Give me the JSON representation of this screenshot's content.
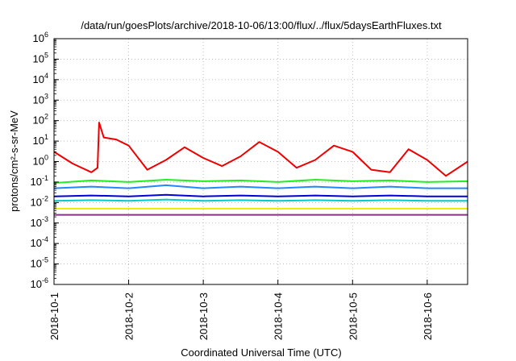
{
  "chart_data": {
    "type": "line",
    "title": "/data/run/goesPlots/archive/2018-10-06/13:00/flux/../flux/5daysEarthFluxes.txt",
    "xlabel": "Coordinated Universal Time (UTC)",
    "ylabel": "protons/cm²-s-sr-MeV",
    "yscale": "log",
    "ylim": [
      1e-06,
      1000000.0
    ],
    "xlim": [
      "2018-10-01",
      "2018-10-06 13:00"
    ],
    "grid": true,
    "legend": "none",
    "x_ticks": [
      "2018-10-1",
      "2018-10-2",
      "2018-10-3",
      "2018-10-4",
      "2018-10-5",
      "2018-10-6"
    ],
    "y_ticks": [
      {
        "base": "10",
        "exp": "6"
      },
      {
        "base": "10",
        "exp": "5"
      },
      {
        "base": "10",
        "exp": "4"
      },
      {
        "base": "10",
        "exp": "3"
      },
      {
        "base": "10",
        "exp": "2"
      },
      {
        "base": "10",
        "exp": "1"
      },
      {
        "base": "10",
        "exp": "0"
      },
      {
        "base": "10",
        "exp": "-1"
      },
      {
        "base": "10",
        "exp": "-2"
      },
      {
        "base": "10",
        "exp": "-3"
      },
      {
        "base": "10",
        "exp": "-4"
      },
      {
        "base": "10",
        "exp": "-5"
      },
      {
        "base": "10",
        "exp": "-6"
      }
    ],
    "series": [
      {
        "color": "#ee0000",
        "x": [
          "2018-10-01 00:00",
          "2018-10-01 06:00",
          "2018-10-01 12:00",
          "2018-10-01 14:00",
          "2018-10-01 14:30",
          "2018-10-01 16:00",
          "2018-10-01 20:00",
          "2018-10-02 00:00",
          "2018-10-02 06:00",
          "2018-10-02 12:00",
          "2018-10-02 18:00",
          "2018-10-03 00:00",
          "2018-10-03 06:00",
          "2018-10-03 12:00",
          "2018-10-03 18:00",
          "2018-10-04 00:00",
          "2018-10-04 06:00",
          "2018-10-04 12:00",
          "2018-10-04 18:00",
          "2018-10-05 00:00",
          "2018-10-05 06:00",
          "2018-10-05 12:00",
          "2018-10-05 18:00",
          "2018-10-06 00:00",
          "2018-10-06 06:00",
          "2018-10-06 13:00"
        ],
        "y": [
          3,
          0.8,
          0.3,
          0.5,
          80,
          15,
          12,
          6,
          0.4,
          1.2,
          5,
          1.5,
          0.6,
          1.8,
          9,
          3,
          0.5,
          1.2,
          6,
          3,
          0.4,
          0.3,
          4,
          1.2,
          0.2,
          1
        ]
      },
      {
        "color": "#22ee22",
        "x": [
          "2018-10-01 00:00",
          "2018-10-01 12:00",
          "2018-10-02 00:00",
          "2018-10-02 12:00",
          "2018-10-03 00:00",
          "2018-10-03 12:00",
          "2018-10-04 00:00",
          "2018-10-04 12:00",
          "2018-10-05 00:00",
          "2018-10-05 12:00",
          "2018-10-06 00:00",
          "2018-10-06 13:00"
        ],
        "y": [
          0.09,
          0.12,
          0.1,
          0.13,
          0.11,
          0.12,
          0.1,
          0.13,
          0.11,
          0.12,
          0.1,
          0.11
        ]
      },
      {
        "color": "#2288ff",
        "x": [
          "2018-10-01 00:00",
          "2018-10-01 12:00",
          "2018-10-02 00:00",
          "2018-10-02 12:00",
          "2018-10-03 00:00",
          "2018-10-03 12:00",
          "2018-10-04 00:00",
          "2018-10-04 12:00",
          "2018-10-05 00:00",
          "2018-10-05 12:00",
          "2018-10-06 00:00",
          "2018-10-06 13:00"
        ],
        "y": [
          0.05,
          0.06,
          0.05,
          0.07,
          0.05,
          0.06,
          0.05,
          0.06,
          0.05,
          0.06,
          0.05,
          0.05
        ]
      },
      {
        "color": "#00cccc",
        "x": [
          "2018-10-01 00:00",
          "2018-10-01 12:00",
          "2018-10-02 00:00",
          "2018-10-02 12:00",
          "2018-10-03 00:00",
          "2018-10-03 12:00",
          "2018-10-04 00:00",
          "2018-10-04 12:00",
          "2018-10-05 00:00",
          "2018-10-05 12:00",
          "2018-10-06 00:00",
          "2018-10-06 13:00"
        ],
        "y": [
          0.012,
          0.013,
          0.012,
          0.014,
          0.012,
          0.013,
          0.012,
          0.013,
          0.012,
          0.013,
          0.012,
          0.012
        ]
      },
      {
        "color": "#0000dd",
        "x": [
          "2018-10-01 00:00",
          "2018-10-01 12:00",
          "2018-10-02 00:00",
          "2018-10-02 12:00",
          "2018-10-03 00:00",
          "2018-10-03 12:00",
          "2018-10-04 00:00",
          "2018-10-04 12:00",
          "2018-10-05 00:00",
          "2018-10-05 12:00",
          "2018-10-06 00:00",
          "2018-10-06 13:00"
        ],
        "y": [
          0.02,
          0.022,
          0.02,
          0.024,
          0.02,
          0.022,
          0.02,
          0.022,
          0.02,
          0.022,
          0.02,
          0.02
        ]
      },
      {
        "color": "#eeee00",
        "x": [
          "2018-10-01 00:00",
          "2018-10-01 12:00",
          "2018-10-02 00:00",
          "2018-10-02 12:00",
          "2018-10-03 00:00",
          "2018-10-03 12:00",
          "2018-10-04 00:00",
          "2018-10-04 12:00",
          "2018-10-05 00:00",
          "2018-10-05 12:00",
          "2018-10-06 00:00",
          "2018-10-06 13:00"
        ],
        "y": [
          0.005,
          0.005,
          0.005,
          0.005,
          0.005,
          0.005,
          0.005,
          0.005,
          0.005,
          0.005,
          0.005,
          0.005
        ]
      },
      {
        "color": "#883388",
        "x": [
          "2018-10-01 00:00",
          "2018-10-01 12:00",
          "2018-10-02 00:00",
          "2018-10-02 12:00",
          "2018-10-03 00:00",
          "2018-10-03 12:00",
          "2018-10-04 00:00",
          "2018-10-04 12:00",
          "2018-10-05 00:00",
          "2018-10-05 12:00",
          "2018-10-06 00:00",
          "2018-10-06 13:00"
        ],
        "y": [
          0.0025,
          0.0025,
          0.0025,
          0.0025,
          0.0025,
          0.0025,
          0.0025,
          0.0025,
          0.0025,
          0.0025,
          0.0025,
          0.0025
        ]
      }
    ]
  }
}
